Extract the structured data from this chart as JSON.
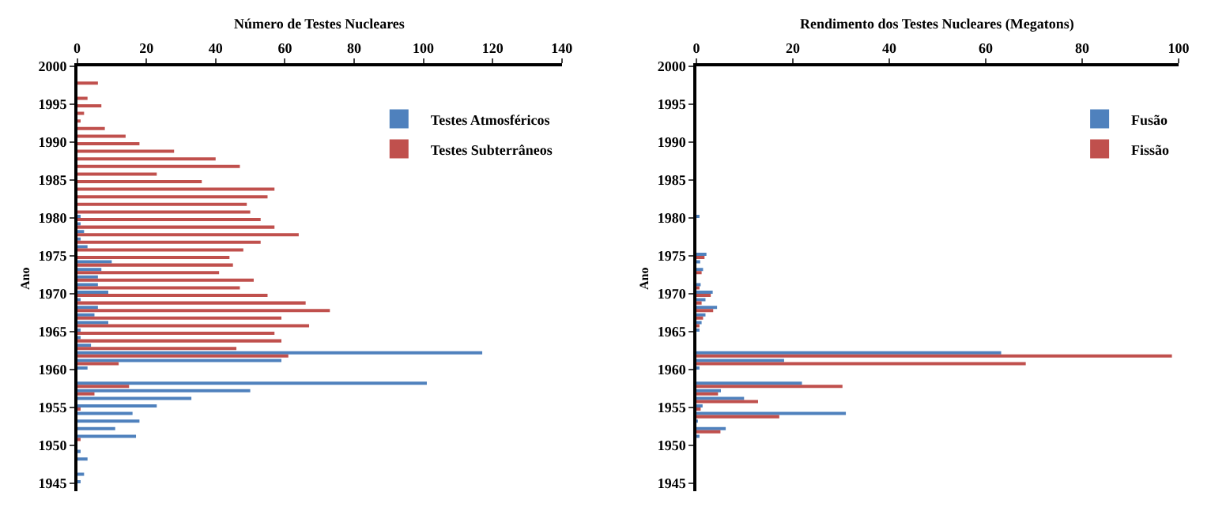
{
  "chart_data": [
    {
      "type": "bar",
      "orientation": "horizontal",
      "title": "Número de Testes Nucleares",
      "ylabel": "Ano",
      "x": [
        1945,
        1946,
        1947,
        1948,
        1949,
        1950,
        1951,
        1952,
        1953,
        1954,
        1955,
        1956,
        1957,
        1958,
        1959,
        1960,
        1961,
        1962,
        1963,
        1964,
        1965,
        1966,
        1967,
        1968,
        1969,
        1970,
        1971,
        1972,
        1973,
        1974,
        1975,
        1976,
        1977,
        1978,
        1979,
        1980,
        1981,
        1982,
        1983,
        1984,
        1985,
        1986,
        1987,
        1988,
        1989,
        1990,
        1991,
        1992,
        1993,
        1994,
        1995,
        1996,
        1997,
        1998
      ],
      "series": [
        {
          "name": "Testes Atmosféricos",
          "color": "#4f81bd",
          "values": [
            1,
            2,
            null,
            3,
            1,
            null,
            17,
            11,
            18,
            16,
            23,
            33,
            50,
            101,
            null,
            3,
            59,
            117,
            4,
            1,
            1,
            9,
            5,
            6,
            1,
            9,
            6,
            6,
            7,
            10,
            null,
            3,
            1,
            2,
            1,
            1,
            null,
            null,
            null,
            null,
            null,
            null,
            null,
            null,
            null,
            null,
            null,
            null,
            null,
            null,
            null,
            null,
            null,
            null
          ]
        },
        {
          "name": "Testes Subterrâneos",
          "color": "#c0504d",
          "values": [
            null,
            null,
            null,
            null,
            null,
            null,
            1,
            null,
            null,
            null,
            1,
            null,
            5,
            15,
            null,
            null,
            12,
            61,
            46,
            59,
            57,
            67,
            59,
            73,
            66,
            55,
            47,
            51,
            41,
            45,
            44,
            48,
            53,
            64,
            57,
            53,
            50,
            49,
            55,
            57,
            36,
            23,
            47,
            40,
            28,
            18,
            14,
            8,
            1,
            2,
            7,
            3,
            null,
            6
          ]
        }
      ],
      "xlim": [
        0,
        140
      ],
      "xticks": [
        0,
        20,
        40,
        60,
        80,
        100,
        120,
        140
      ],
      "ylim": [
        1944,
        2000
      ],
      "yticks": [
        1945,
        1950,
        1955,
        1960,
        1965,
        1970,
        1975,
        1980,
        1985,
        1990,
        1995,
        2000
      ],
      "legend": "top right"
    },
    {
      "type": "bar",
      "orientation": "horizontal",
      "title": "Rendimento dos Testes Nucleares (Megatons)",
      "ylabel": "Ano",
      "x": [
        1951,
        1952,
        1953,
        1954,
        1955,
        1956,
        1957,
        1958,
        1959,
        1960,
        1961,
        1962,
        1963,
        1964,
        1965,
        1966,
        1967,
        1968,
        1969,
        1970,
        1971,
        1972,
        1973,
        1974,
        1975,
        1976,
        1977,
        1978,
        1979,
        1980
      ],
      "series": [
        {
          "name": "Fusão",
          "color": "#4f81bd",
          "values": [
            0.4,
            6.1,
            0.3,
            31,
            1.3,
            9.9,
            5.1,
            21.9,
            null,
            0.5,
            18.2,
            63.2,
            null,
            null,
            0.6,
            1.1,
            1.9,
            4.3,
            1.9,
            3.4,
            0.9,
            null,
            1.4,
            0.8,
            2.1,
            null,
            null,
            null,
            null,
            0.4
          ]
        },
        {
          "name": "Fissão",
          "color": "#c0504d",
          "values": [
            null,
            5.0,
            null,
            17.2,
            0.9,
            12.8,
            4.5,
            30.3,
            null,
            null,
            68.3,
            98.6,
            null,
            null,
            null,
            0.5,
            1.4,
            3.5,
            1.1,
            3.0,
            0.6,
            null,
            1.1,
            null,
            1.7,
            null,
            null,
            null,
            null,
            null
          ]
        }
      ],
      "xlim": [
        0,
        100
      ],
      "xticks": [
        0,
        20,
        40,
        60,
        80,
        100
      ],
      "ylim": [
        1944,
        2000
      ],
      "yticks": [
        1945,
        1950,
        1955,
        1960,
        1965,
        1970,
        1975,
        1980,
        1985,
        1990,
        1995,
        2000
      ],
      "legend": "top right"
    }
  ]
}
